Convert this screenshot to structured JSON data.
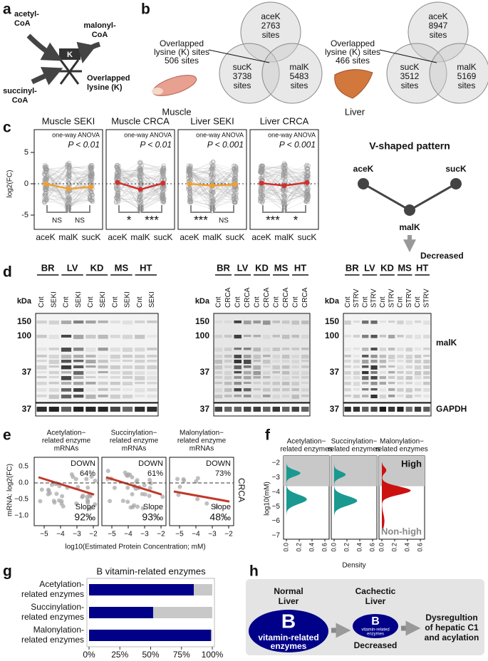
{
  "a": {
    "label": "a",
    "acetyl": [
      "acetyl-",
      "CoA"
    ],
    "malonyl": [
      "malonyl-",
      "CoA"
    ],
    "succinyl": [
      "succinyl-",
      "CoA"
    ],
    "k": "K",
    "overlap": [
      "Overlapped",
      "lysine (K)"
    ]
  },
  "b": {
    "label": "b",
    "venns": [
      {
        "tissue": "Muscle",
        "overlap": [
          "Overlapped",
          "lysine (K) sites",
          "506 sites"
        ],
        "ace": [
          "aceK",
          "2763",
          "sites"
        ],
        "suc": [
          "sucK",
          "3738",
          "sites"
        ],
        "mal": [
          "malK",
          "5483",
          "sites"
        ]
      },
      {
        "tissue": "Liver",
        "overlap": [
          "Overlapped",
          "lysine (K) sites",
          "466 sites"
        ],
        "ace": [
          "aceK",
          "8947",
          "sites"
        ],
        "suc": [
          "sucK",
          "3512",
          "sites"
        ],
        "mal": [
          "malK",
          "5169",
          "sites"
        ]
      }
    ]
  },
  "c": {
    "label": "c",
    "y_label": "log2(FC)",
    "yticks": [
      5,
      0,
      -5
    ],
    "x": [
      "aceK",
      "malK",
      "sucK"
    ],
    "panels": [
      {
        "title": "Muscle SEKI",
        "test": "one-way ANOVA",
        "p": "P < 0.01",
        "sig": [
          "NS",
          "NS"
        ],
        "color": "#f0a030",
        "means": [
          0,
          -0.8,
          -0.5
        ]
      },
      {
        "title": "Muscle CRCA",
        "test": "one-way ANOVA",
        "p": "P < 0.01",
        "sig": [
          "*",
          "***"
        ],
        "color": "#d03030",
        "means": [
          0.2,
          -0.9,
          0.1
        ]
      },
      {
        "title": "Liver SEKI",
        "test": "one-way ANOVA",
        "p": "P < 0.001",
        "sig": [
          "***",
          "NS"
        ],
        "color": "#f0a030",
        "means": [
          0,
          -0.3,
          -0.1
        ]
      },
      {
        "title": "Liver CRCA",
        "test": "one-way ANOVA",
        "p": "P < 0.001",
        "sig": [
          "***",
          "*"
        ],
        "color": "#d03030",
        "means": [
          0.1,
          -0.3,
          0.2
        ]
      }
    ],
    "v": {
      "title": "V-shaped pattern",
      "nodes": [
        "aceK",
        "sucK",
        "malK"
      ],
      "decreased": "Decreased"
    }
  },
  "d": {
    "label": "d",
    "kda": "kDa",
    "malk": "malK",
    "gapdh": "GAPDH",
    "blots": [
      {
        "groups": [
          "BR",
          "LV",
          "KD",
          "MS",
          "HT"
        ],
        "lanes": [
          "Cnt",
          "SEKI"
        ],
        "markers": [
          "150",
          "100",
          "37"
        ],
        "gapdh_marker": "37"
      },
      {
        "groups": [
          "BR",
          "LV",
          "KD",
          "MS",
          "HT"
        ],
        "lanes": [
          "Cnt",
          "CRCA"
        ],
        "markers": [
          "150",
          "100",
          "37"
        ],
        "gapdh_marker": "37"
      },
      {
        "groups": [
          "BR",
          "LV",
          "KD",
          "MS",
          "HT"
        ],
        "lanes": [
          "Cnt",
          "STRV"
        ],
        "markers": [
          "150",
          "100",
          "37"
        ],
        "gapdh_marker": "37"
      }
    ]
  },
  "e": {
    "label": "e",
    "y_label": "mRNA: log2(FC)",
    "yticks": [
      "0.5",
      "0.0",
      "−0.5",
      "−1.0"
    ],
    "xticks": [
      "−5",
      "−4",
      "−3",
      "−2"
    ],
    "x_label": "log10(Estimated Protein Concentration; mM)",
    "side": "CRCA",
    "panels": [
      {
        "title": [
          "Acetylation−",
          "related enzyme",
          "mRNAs"
        ],
        "down": "DOWN",
        "pct": "64%",
        "slope": "Slope",
        "permil": "92‰"
      },
      {
        "title": [
          "Succinylation−",
          "related enzyme",
          "mRNAs"
        ],
        "down": "DOWN",
        "pct": "61%",
        "slope": "Slope",
        "permil": "93‰"
      },
      {
        "title": [
          "Malonylation−",
          "related enzyme",
          "mRNAs"
        ],
        "down": "DOWN",
        "pct": "73%",
        "slope": "Slope",
        "permil": "48‰"
      }
    ]
  },
  "f": {
    "label": "f",
    "y_label": "log10(mM)",
    "yticks": [
      "−2",
      "−3",
      "−4",
      "−5",
      "−6",
      "−7"
    ],
    "xticks": [
      "0.0",
      "0.2",
      "0.4",
      "0.6"
    ],
    "x_label": "Density",
    "high": "High",
    "nonhigh": "Non-high",
    "panels": [
      {
        "title": [
          "Acetylation−",
          "related enzymes"
        ],
        "color": "#1a9990"
      },
      {
        "title": [
          "Succinylation−",
          "related enzymes"
        ],
        "color": "#1a9990"
      },
      {
        "title": [
          "Malonylation−",
          "related enzymes"
        ],
        "color": "#cc1111"
      }
    ]
  },
  "g": {
    "label": "g"
  },
  "chart_data": {
    "type": "bar",
    "title": "B vitamin-related enzymes",
    "categories": [
      [
        "Acetylation-",
        "related enzymes"
      ],
      [
        "Succinylation-",
        "related enzymes"
      ],
      [
        "Malonylation-",
        "related enzymes"
      ]
    ],
    "series": [
      {
        "color": "#000088",
        "values": [
          85,
          52,
          99
        ]
      },
      {
        "color": "#c8c8c8",
        "values": [
          15,
          48,
          1
        ]
      }
    ],
    "xlim": [
      0,
      100
    ],
    "xticks": [
      {
        "value": 0,
        "label": "0%"
      },
      {
        "value": 25,
        "label": "25%"
      },
      {
        "value": 50,
        "label": "50%"
      },
      {
        "value": 75,
        "label": "75%"
      },
      {
        "value": 100,
        "label": "100%"
      }
    ]
  },
  "h": {
    "label": "h",
    "normal": [
      "Normal",
      "Liver"
    ],
    "b_big": "B",
    "big_text": [
      "vitamin-related",
      "enzymes"
    ],
    "cachectic": [
      "Cachectic",
      "Liver"
    ],
    "b_small": "B",
    "small_text": [
      "vitamin-related",
      "enzymes"
    ],
    "decreased": "Decreased",
    "result": [
      "Dysregultion",
      "of hepatic C1",
      "and acylation"
    ]
  }
}
